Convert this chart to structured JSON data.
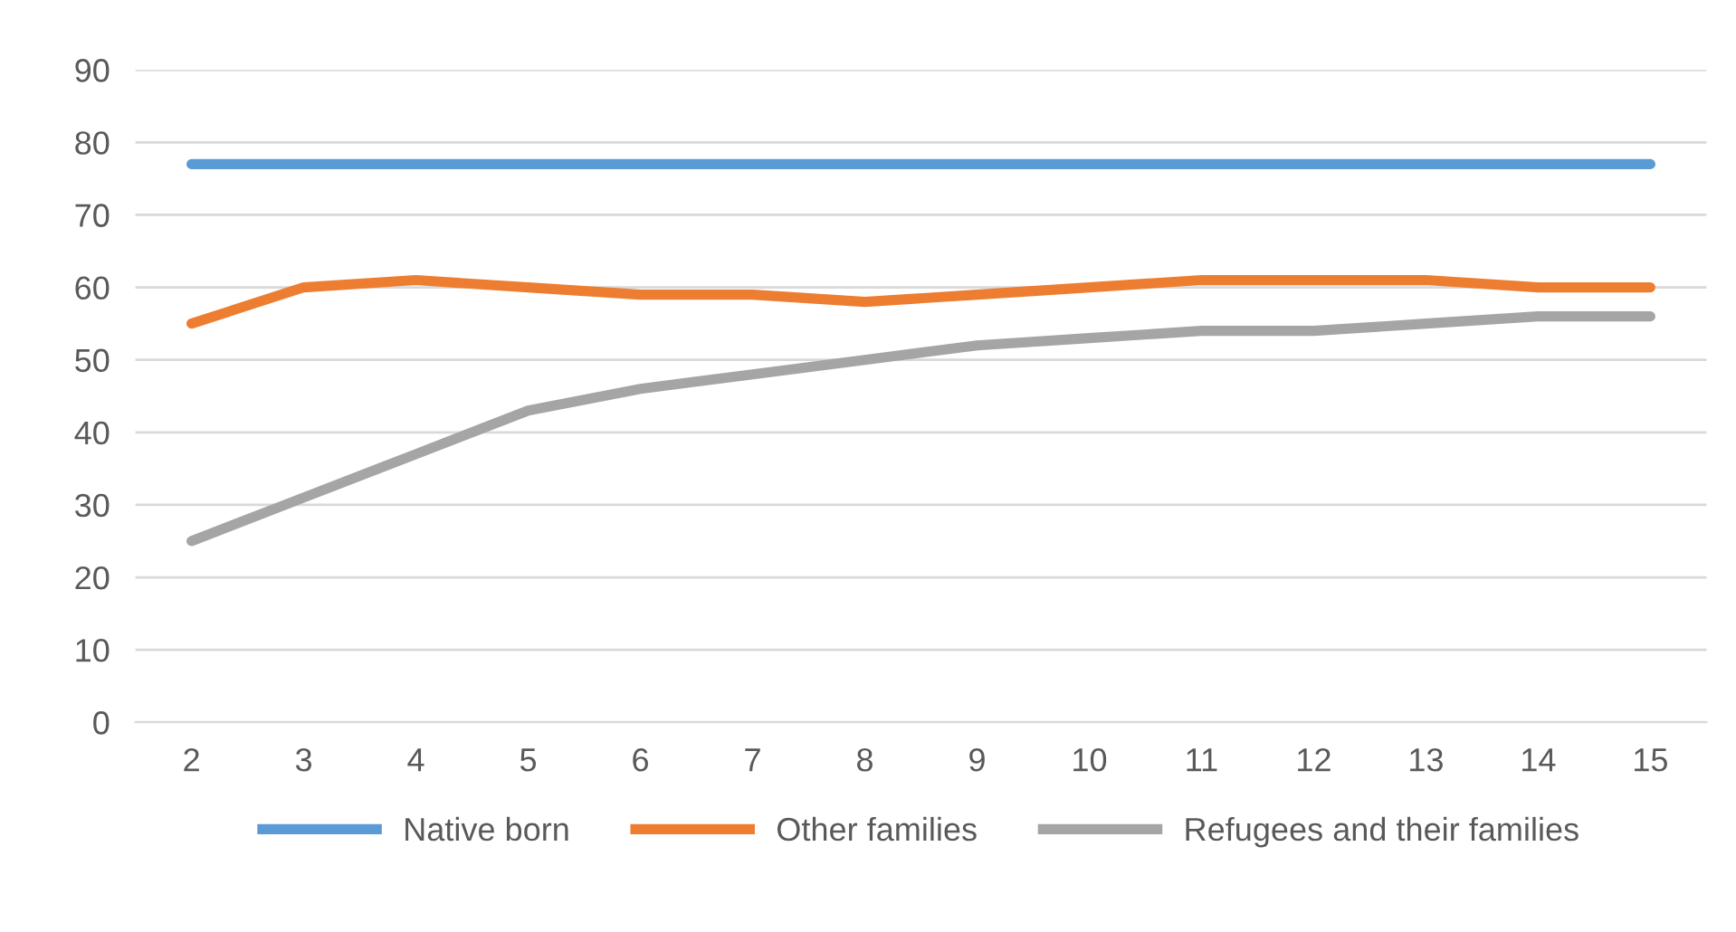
{
  "chart_data": {
    "type": "line",
    "categories": [
      "2",
      "3",
      "4",
      "5",
      "6",
      "7",
      "8",
      "9",
      "10",
      "11",
      "12",
      "13",
      "14",
      "15"
    ],
    "series": [
      {
        "name": "Native born",
        "color": "#5b9bd5",
        "values": [
          77,
          77,
          77,
          77,
          77,
          77,
          77,
          77,
          77,
          77,
          77,
          77,
          77,
          77
        ]
      },
      {
        "name": "Other families",
        "color": "#ed7d31",
        "values": [
          55,
          60,
          61,
          60,
          59,
          59,
          58,
          59,
          60,
          61,
          61,
          61,
          60,
          60
        ]
      },
      {
        "name": "Refugees and their families",
        "color": "#a5a5a5",
        "values": [
          25,
          31,
          37,
          43,
          46,
          48,
          50,
          52,
          53,
          54,
          54,
          55,
          56,
          56
        ]
      }
    ],
    "ylim": [
      0,
      90
    ],
    "yticks": [
      0,
      10,
      20,
      30,
      40,
      50,
      60,
      70,
      80,
      90
    ],
    "grid": "y",
    "legend": "bottom",
    "marker": "none",
    "line_style": "solid"
  }
}
